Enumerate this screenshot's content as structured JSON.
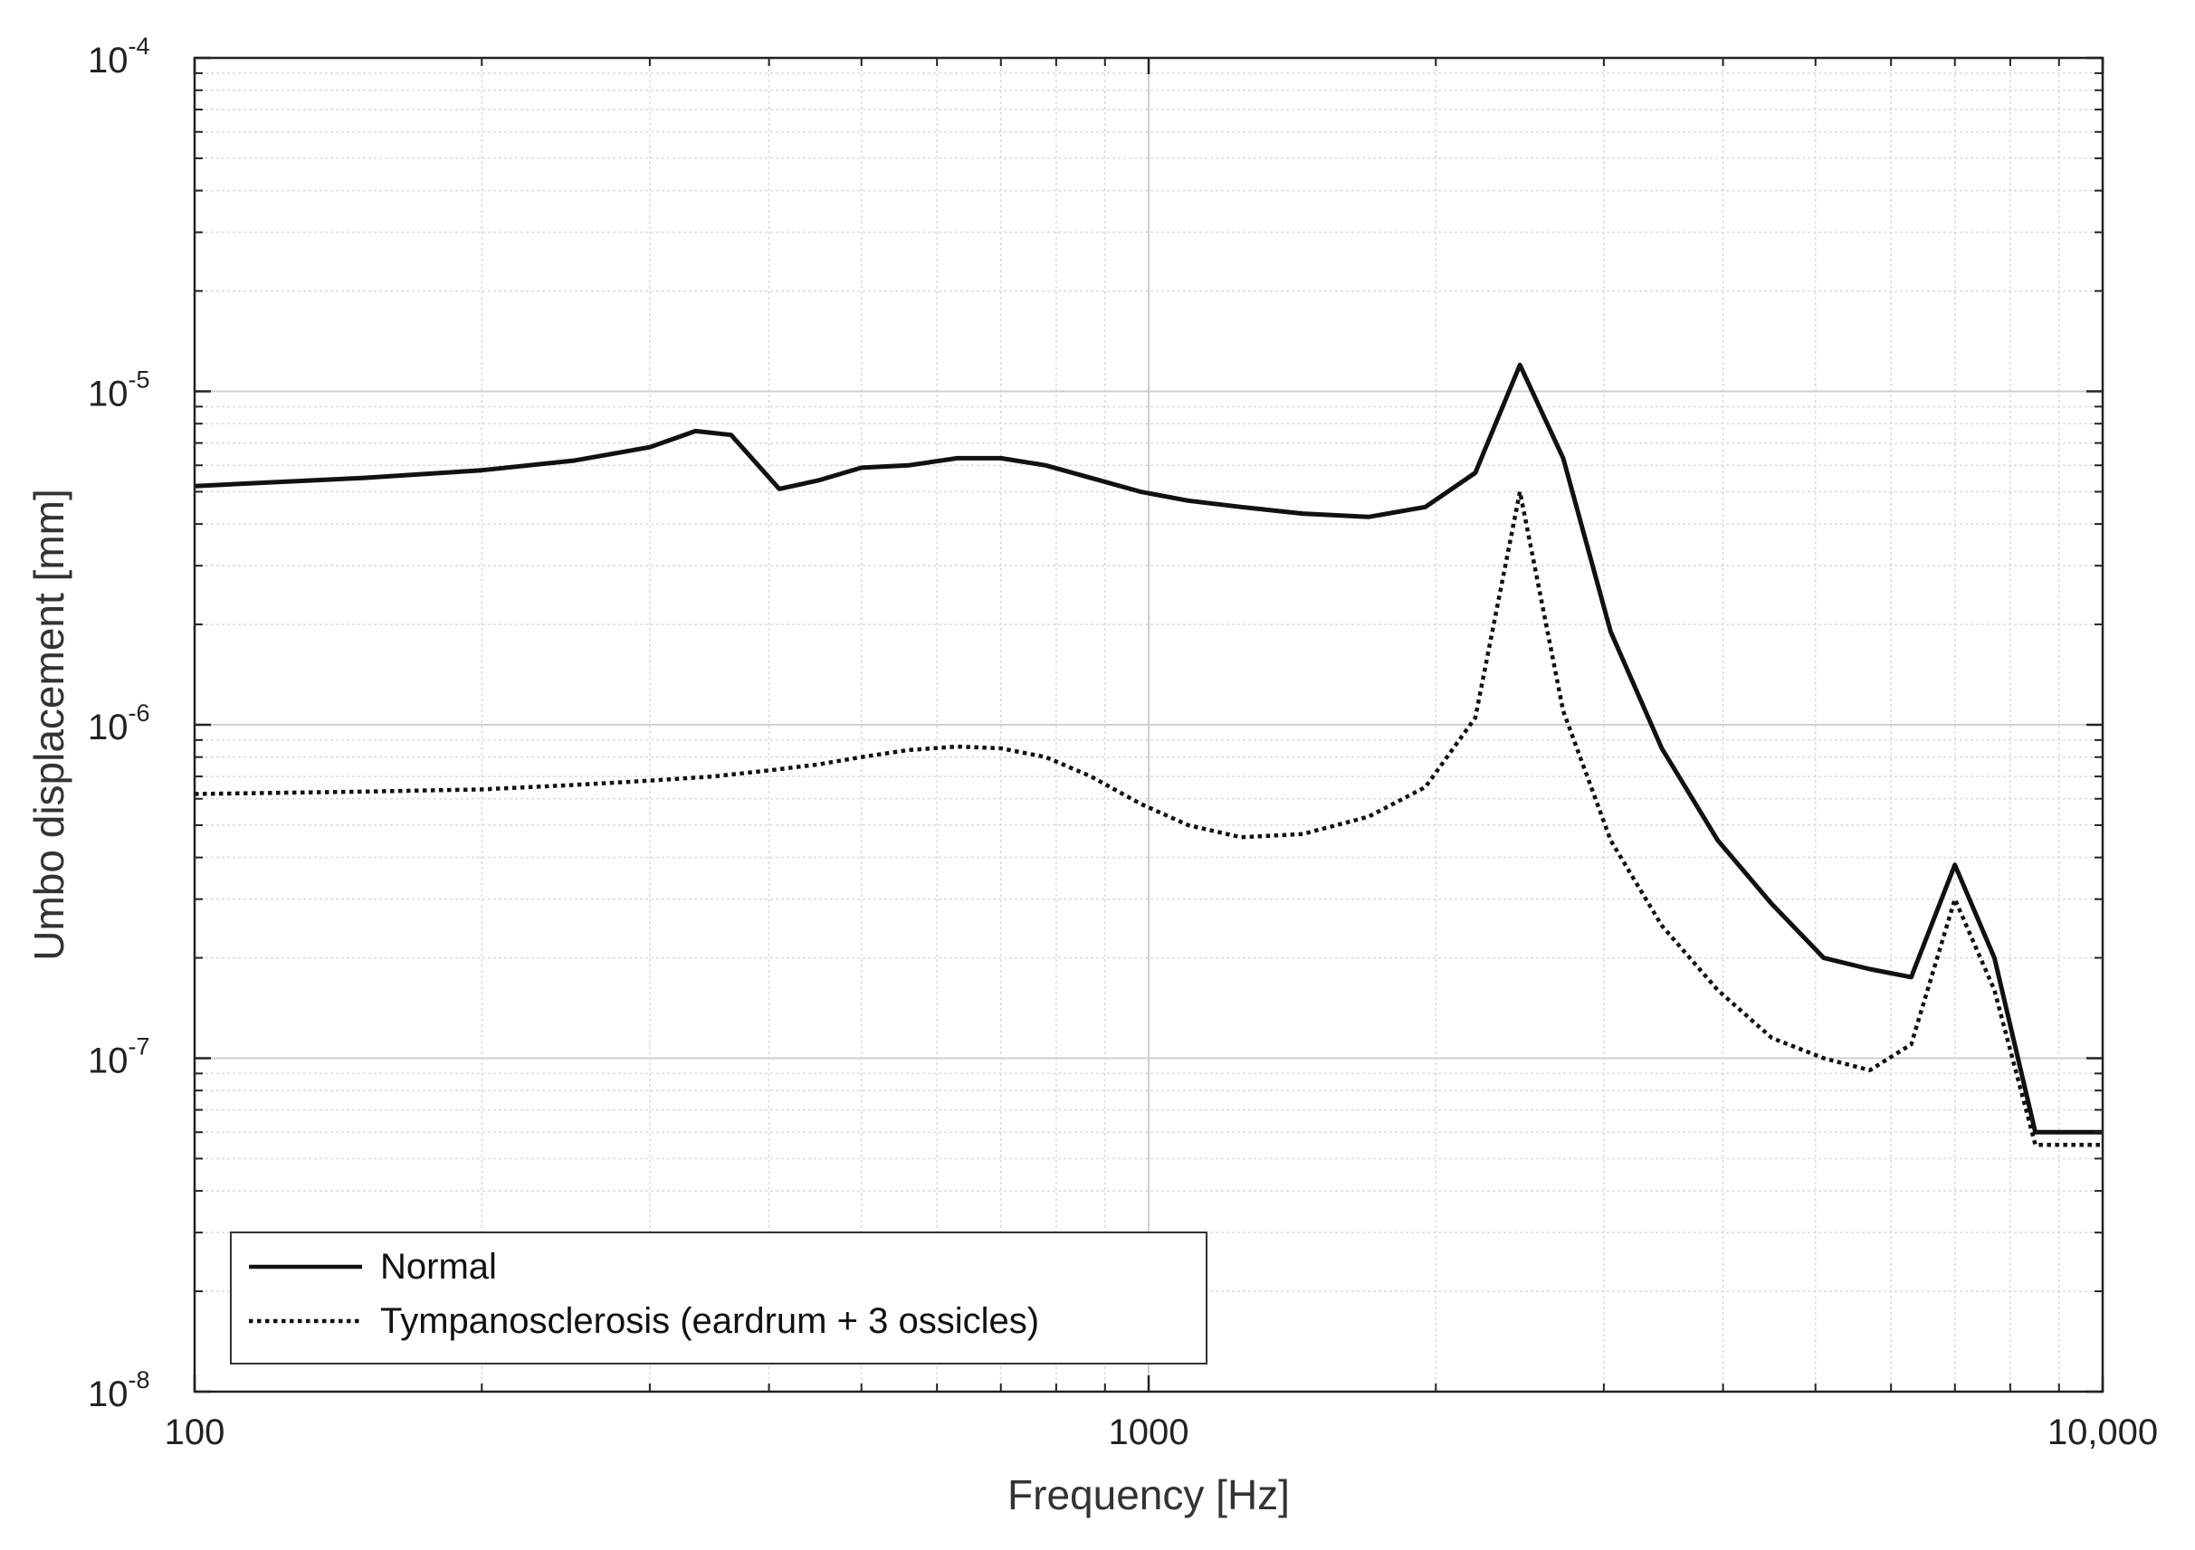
{
  "chart_data": {
    "type": "line",
    "xlabel": "Frequency [Hz]",
    "ylabel": "Umbo displacement [mm]",
    "xscale": "log",
    "yscale": "log",
    "xlim": [
      100,
      10000
    ],
    "ylim": [
      1e-08,
      0.0001
    ],
    "grid": true,
    "minor_grid": true,
    "x_ticks": [
      {
        "value": 100,
        "label": "100"
      },
      {
        "value": 1000,
        "label": "1000"
      },
      {
        "value": 10000,
        "label": "10,000"
      }
    ],
    "y_ticks": [
      {
        "value": 1e-08,
        "base": "10",
        "exp": "-8"
      },
      {
        "value": 1e-07,
        "base": "10",
        "exp": "-7"
      },
      {
        "value": 1e-06,
        "base": "10",
        "exp": "-6"
      },
      {
        "value": 1e-05,
        "base": "10",
        "exp": "-5"
      },
      {
        "value": 0.0001,
        "base": "10",
        "exp": "-4"
      }
    ],
    "legend_position": "bottom-left",
    "series": [
      {
        "name": "Normal",
        "style": "solid",
        "color": "#111111",
        "x": [
          100,
          150,
          200,
          250,
          300,
          335,
          365,
          410,
          450,
          500,
          560,
          630,
          700,
          780,
          870,
          980,
          1100,
          1250,
          1450,
          1700,
          1950,
          2200,
          2450,
          2720,
          3050,
          3450,
          3950,
          4500,
          5100,
          5700,
          6300,
          7000,
          7700,
          8500,
          9400,
          10000
        ],
        "y": [
          5.2e-06,
          5.5e-06,
          5.8e-06,
          6.2e-06,
          6.8e-06,
          7.6e-06,
          7.4e-06,
          5.1e-06,
          5.4e-06,
          5.9e-06,
          6e-06,
          6.3e-06,
          6.3e-06,
          6e-06,
          5.5e-06,
          5e-06,
          4.7e-06,
          4.5e-06,
          4.3e-06,
          4.2e-06,
          4.5e-06,
          5.7e-06,
          1.2e-05,
          6.3e-06,
          1.9e-06,
          8.5e-07,
          4.5e-07,
          2.9e-07,
          2e-07,
          1.85e-07,
          1.75e-07,
          3.8e-07,
          2e-07,
          6e-08,
          6e-08,
          6e-08
        ]
      },
      {
        "name": "Tympanosclerosis (eardrum + 3 ossicles)",
        "style": "dotted",
        "color": "#111111",
        "x": [
          100,
          150,
          200,
          250,
          300,
          350,
          400,
          450,
          500,
          560,
          630,
          700,
          780,
          870,
          980,
          1100,
          1250,
          1450,
          1700,
          1950,
          2200,
          2450,
          2720,
          3050,
          3450,
          3950,
          4500,
          5100,
          5700,
          6300,
          7000,
          7700,
          8500,
          9400,
          10000
        ],
        "y": [
          6.2e-07,
          6.3e-07,
          6.4e-07,
          6.6e-07,
          6.8e-07,
          7e-07,
          7.3e-07,
          7.6e-07,
          8e-07,
          8.4e-07,
          8.6e-07,
          8.5e-07,
          8e-07,
          7e-07,
          5.8e-07,
          5e-07,
          4.6e-07,
          4.7e-07,
          5.3e-07,
          6.5e-07,
          1.05e-06,
          5e-06,
          1.1e-06,
          4.5e-07,
          2.5e-07,
          1.6e-07,
          1.15e-07,
          1e-07,
          9.2e-08,
          1.1e-07,
          3e-07,
          1.6e-07,
          5.5e-08,
          5.5e-08,
          5.5e-08
        ]
      }
    ]
  }
}
